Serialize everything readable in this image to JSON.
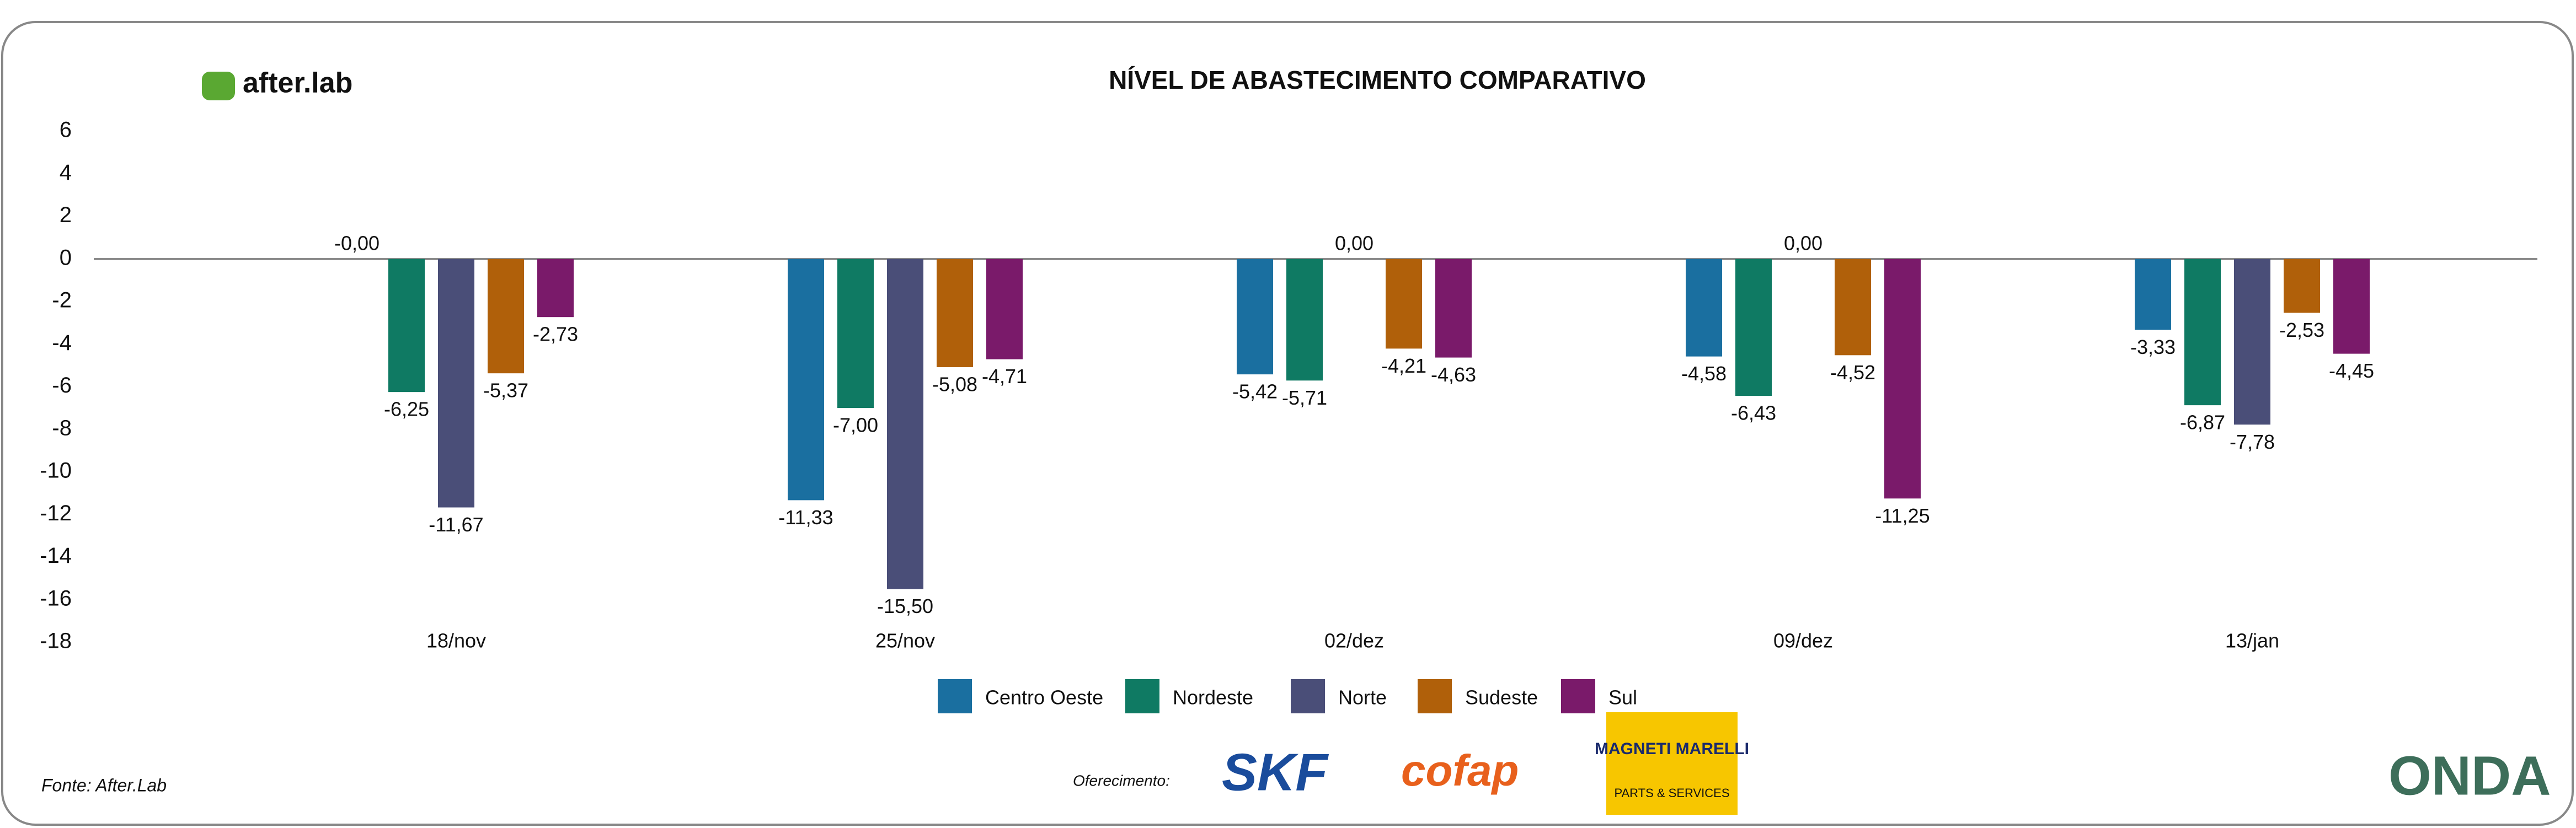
{
  "header": {
    "brand": "after.lab"
  },
  "chart_data": {
    "type": "bar",
    "title": "NÍVEL DE ABASTECIMENTO COMPARATIVO",
    "categories": [
      "18/nov",
      "25/nov",
      "02/dez",
      "09/dez",
      "13/jan"
    ],
    "series": [
      {
        "name": "Centro Oeste",
        "color": "#1a6fa0",
        "values": [
          0,
          -11.33,
          -5.42,
          -4.58,
          -3.33
        ],
        "value_labels": [
          "-0,00",
          "-11,33",
          "-5,42",
          "-4,58",
          "-3,33"
        ]
      },
      {
        "name": "Nordeste",
        "color": "#0f7a63",
        "values": [
          -6.25,
          -7.0,
          -5.71,
          -6.43,
          -6.87
        ],
        "value_labels": [
          "-6,25",
          "-7,00",
          "-5,71",
          "-6,43",
          "-6,87"
        ]
      },
      {
        "name": "Norte",
        "color": "#4a4e78",
        "values": [
          -11.67,
          -15.5,
          0,
          0,
          -7.78
        ],
        "value_labels": [
          "-11,67",
          "-15,50",
          "0,00",
          "0,00",
          "-7,78"
        ]
      },
      {
        "name": "Sudeste",
        "color": "#b0600a",
        "values": [
          -5.37,
          -5.08,
          -4.21,
          -4.52,
          -2.53
        ],
        "value_labels": [
          "-5,37",
          "-5,08",
          "-4,21",
          "-4,52",
          "-2,53"
        ]
      },
      {
        "name": "Sul",
        "color": "#7a1a6a",
        "values": [
          -2.73,
          -4.71,
          -4.63,
          -11.25,
          -4.45
        ],
        "value_labels": [
          "-2,73",
          "-4,71",
          "-4,63",
          "-11,25",
          "-4,45"
        ]
      }
    ],
    "ylim": [
      -18,
      6
    ],
    "yticks": [
      6,
      4,
      2,
      0,
      -2,
      -4,
      -6,
      -8,
      -10,
      -12,
      -14,
      -16,
      -18
    ],
    "grid": false
  },
  "footer": {
    "source": "Fonte: After.Lab",
    "sponsor_label": "Oferecimento:",
    "sponsors": [
      "SKF",
      "cofap",
      "MAGNETI MARELLI",
      "PARTS & SERVICES"
    ],
    "partner": "ONDA"
  }
}
